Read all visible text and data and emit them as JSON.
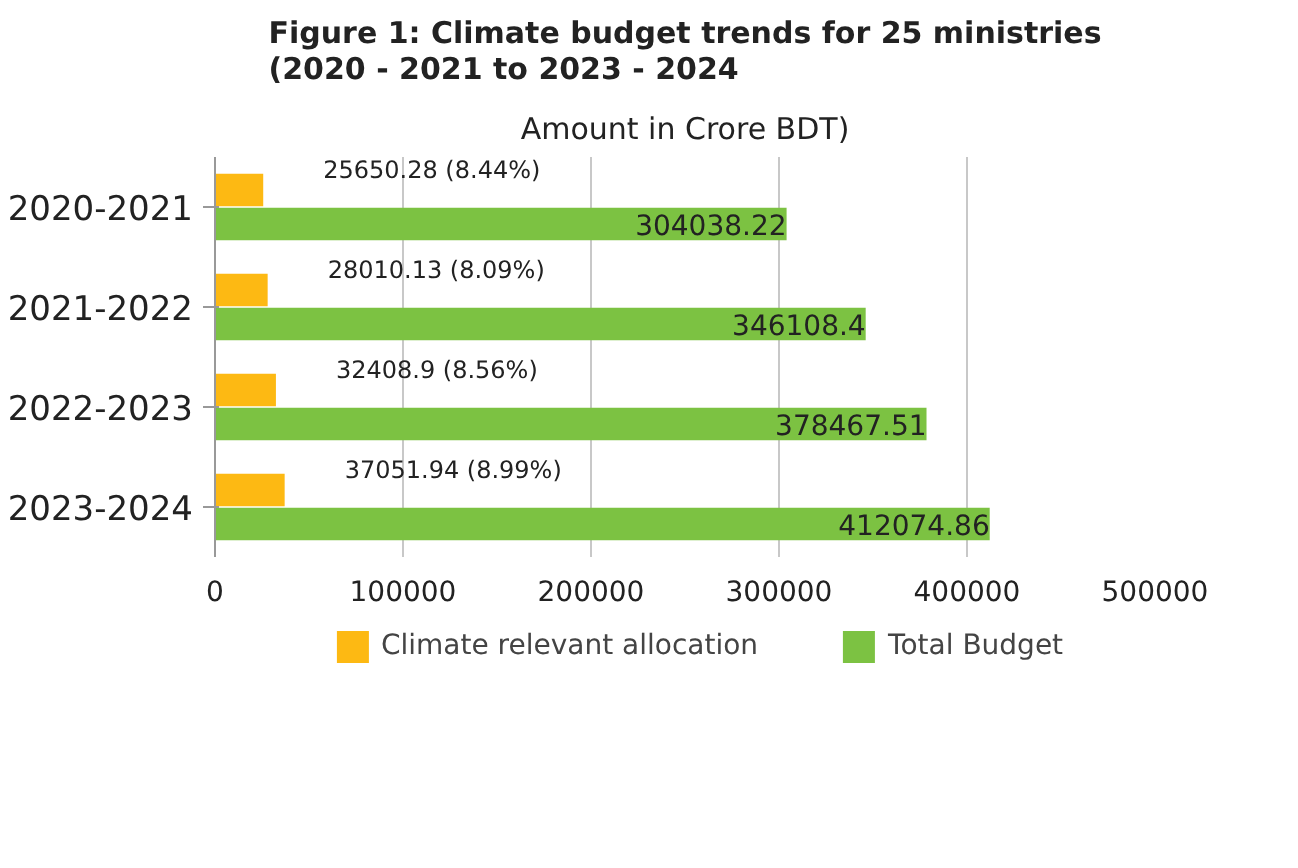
{
  "chart_data": {
    "type": "bar",
    "orientation": "horizontal",
    "title": "Figure 1: Climate budget trends for 25 ministries\n(2020 - 2021 to 2023 - 2024",
    "subtitle": "Amount in Crore BDT)",
    "categories": [
      "2020-2021",
      "2021-2022",
      "2022-2023",
      "2023-2024"
    ],
    "series": [
      {
        "name": "Climate relevant allocation",
        "color": "#fdb913",
        "values": [
          25650.28,
          28010.13,
          32408.9,
          37051.94
        ],
        "value_labels": [
          "25650.28 (8.44%)",
          "28010.13 (8.09%)",
          "32408.9 (8.56%)",
          "37051.94 (8.99%)"
        ]
      },
      {
        "name": "Total Budget",
        "color": "#7cc242",
        "values": [
          304038.22,
          346108.4,
          378467.51,
          412074.86
        ],
        "value_labels": [
          "304038.22",
          "346108.4",
          "378467.51",
          "412074.86"
        ]
      }
    ],
    "xlim": [
      0,
      500000
    ],
    "xticks": [
      0,
      100000,
      200000,
      300000,
      400000,
      500000
    ],
    "grid": "x",
    "legend": "bottom"
  }
}
